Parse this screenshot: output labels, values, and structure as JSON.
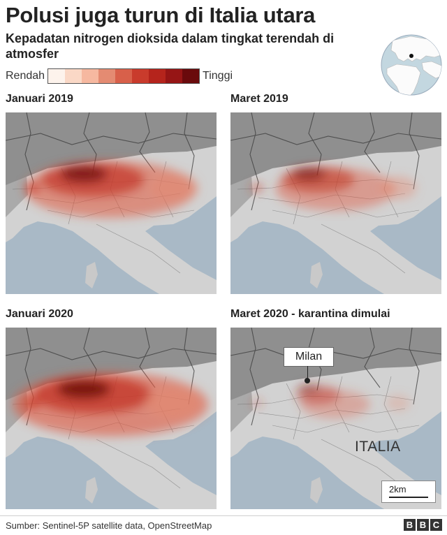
{
  "title": "Polusi juga turun di Italia utara",
  "subtitle": "Kepadatan nitrogen dioksida dalam tingkat terendah di atmosfer",
  "legend": {
    "low_label": "Rendah",
    "high_label": "Tinggi",
    "colors": [
      "#fdf3ec",
      "#fad8c6",
      "#f6b8a0",
      "#e48b72",
      "#d8604a",
      "#c93b2c",
      "#b5241c",
      "#961515",
      "#6a0a0c"
    ]
  },
  "panels": [
    {
      "title": "Januari 2019",
      "intensity": 0.85
    },
    {
      "title": "Maret 2019",
      "intensity": 0.55
    },
    {
      "title": "Januari 2020",
      "intensity": 1.0
    },
    {
      "title": "Maret 2020 - karantina dimulai",
      "intensity": 0.25
    }
  ],
  "annotations": {
    "city_label": "Milan",
    "country_label": "ITALIA",
    "scale_label": "2km"
  },
  "footer": {
    "source": "Sumber: Sentinel-5P satellite data, OpenStreetMap",
    "logo_letters": [
      "B",
      "B",
      "C"
    ]
  },
  "colors": {
    "sea": "#a9b9c6",
    "land": "#d2d2d2",
    "alps": "#8f8f8f",
    "borders": "#3a3a3a"
  }
}
